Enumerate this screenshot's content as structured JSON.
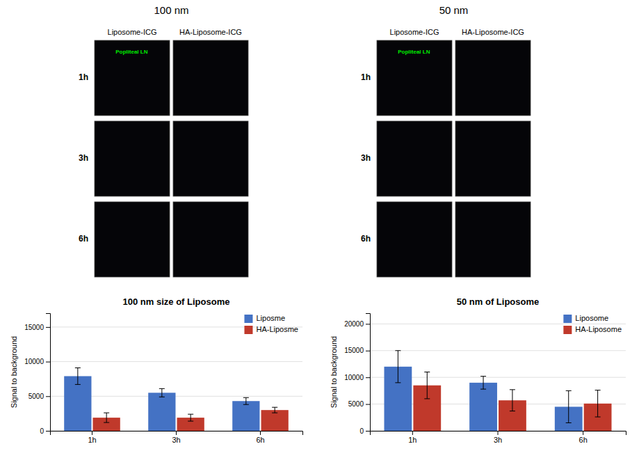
{
  "chart_data": [
    {
      "type": "bar",
      "title": "100 nm size of Liposome",
      "y_label": "Signal to background",
      "categories": [
        "1h",
        "3h",
        "6h"
      ],
      "series": [
        {
          "name": "Liposme",
          "color": "#4472C4",
          "values": [
            7900,
            5500,
            4300
          ],
          "errors": [
            1200,
            600,
            500
          ]
        },
        {
          "name": "HA-Liposme",
          "color": "#C0392B",
          "values": [
            1900,
            1900,
            3000
          ],
          "errors": [
            700,
            500,
            400
          ]
        }
      ],
      "ylim": [
        0,
        17000
      ],
      "yticks": [
        0,
        5000,
        10000,
        15000
      ],
      "grid": true,
      "legend": "upper right",
      "annotations": {
        "group_title": "100 nm",
        "column_labels": [
          "Liposome-ICG",
          "HA-Liposome-ICG"
        ],
        "row_labels": [
          "1h",
          "3h",
          "6h"
        ],
        "panel_label": "Popliteal LN"
      }
    },
    {
      "type": "bar",
      "title": "50 nm of Liposome",
      "y_label": "Signal to background",
      "categories": [
        "1h",
        "3h",
        "6h"
      ],
      "series": [
        {
          "name": "Liposome",
          "color": "#4472C4",
          "values": [
            12000,
            9000,
            4500
          ],
          "errors": [
            3000,
            1200,
            3000
          ]
        },
        {
          "name": "HA-Liposome",
          "color": "#C0392B",
          "values": [
            8500,
            5700,
            5100
          ],
          "errors": [
            2500,
            2000,
            2500
          ]
        }
      ],
      "ylim": [
        0,
        22000
      ],
      "yticks": [
        0,
        5000,
        10000,
        15000,
        20000
      ],
      "grid": true,
      "legend": "upper right",
      "annotations": {
        "group_title": "50 nm",
        "column_labels": [
          "Liposome-ICG",
          "HA-Liposome-ICG"
        ],
        "row_labels": [
          "1h",
          "3h",
          "6h"
        ],
        "panel_label": "Popliteal LN"
      }
    }
  ]
}
